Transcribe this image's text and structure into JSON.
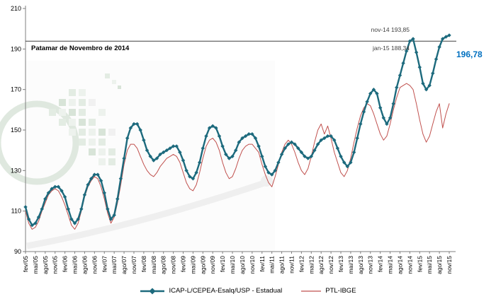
{
  "chart_data": {
    "type": "line",
    "title": "",
    "ylim": [
      90,
      210
    ],
    "y_ticks": [
      210,
      190,
      170,
      150,
      130,
      110,
      90
    ],
    "x_tick_step": 3,
    "x_tick_labels": [
      "fev/05",
      "mai/05",
      "ago/05",
      "nov/05",
      "fev/06",
      "mai/06",
      "ago/06",
      "nov/06",
      "fev/07",
      "mai/07",
      "ago/07",
      "nov/07",
      "fev/08",
      "mai/08",
      "ago/08",
      "nov/08",
      "fev/09",
      "mai/09",
      "ago/09",
      "nov/09",
      "fev/10",
      "mai/10",
      "ago/10",
      "nov/10",
      "fev/11",
      "mai/11",
      "ago/11",
      "nov/11",
      "fev/12",
      "mai/12",
      "ago/12",
      "nov/12",
      "fev/13",
      "mai/13",
      "ago/13",
      "nov/13",
      "fev/14",
      "mai/14",
      "ago/14",
      "nov/14",
      "fev/15",
      "mai/15",
      "ago/15",
      "nov/15"
    ],
    "reference_line": {
      "value": 193.85,
      "label": "Patamar de Novembro de 2014",
      "color": "#404040"
    },
    "annotations": [
      {
        "id": "nov14",
        "text": "nov-14 193,85",
        "color": "#404040"
      },
      {
        "id": "jan15",
        "text": "jan-15 188,34",
        "color": "#404040"
      },
      {
        "id": "last-value",
        "text": "196,78",
        "color": "#0070c0"
      }
    ],
    "legend_position": "bottom",
    "grid": false,
    "series": [
      {
        "name": "ICAP-L/CEPEA-Esalq/USP - Estadual",
        "color": "#1d6a7d",
        "line_width": 2.4,
        "marker": "diamond",
        "values": [
          112,
          106,
          103,
          104,
          107,
          111,
          116,
          119,
          121,
          122,
          122,
          120,
          117,
          111,
          106,
          104,
          106,
          111,
          118,
          123,
          126,
          128,
          128,
          125,
          119,
          111,
          106,
          108,
          116,
          126,
          136,
          146,
          151,
          153,
          153,
          150,
          145,
          140,
          137,
          135,
          136,
          138,
          139,
          140,
          141,
          142,
          142,
          139,
          135,
          130,
          127,
          126,
          129,
          134,
          141,
          147,
          151,
          152,
          151,
          147,
          142,
          138,
          136,
          137,
          140,
          144,
          146,
          147,
          148,
          148,
          146,
          142,
          137,
          132,
          129,
          128,
          130,
          134,
          138,
          141,
          143,
          144,
          143,
          141,
          139,
          137,
          136,
          137,
          140,
          143,
          145,
          146,
          147,
          147,
          145,
          141,
          137,
          134,
          132,
          134,
          139,
          146,
          153,
          159,
          164,
          168,
          170,
          168,
          161,
          156,
          153,
          156,
          163,
          171,
          177,
          183,
          189,
          193.85,
          195,
          188.34,
          181,
          173,
          170,
          172,
          178,
          185,
          191,
          195,
          196,
          196.78
        ]
      },
      {
        "name": "PTL-IBGE",
        "color": "#c0504d",
        "line_width": 1,
        "marker": "none",
        "values": [
          110,
          104,
          101,
          102,
          105,
          110,
          114,
          118,
          120,
          121,
          120,
          117,
          113,
          108,
          103,
          101,
          104,
          110,
          117,
          122,
          125,
          127,
          126,
          122,
          116,
          109,
          104,
          107,
          114,
          123,
          133,
          140,
          143,
          143,
          141,
          137,
          133,
          130,
          128,
          127,
          129,
          132,
          134,
          136,
          137,
          138,
          137,
          134,
          129,
          124,
          121,
          120,
          123,
          129,
          136,
          142,
          145,
          146,
          144,
          140,
          134,
          129,
          126,
          127,
          131,
          136,
          140,
          142,
          143,
          143,
          141,
          139,
          133,
          128,
          124,
          122,
          127,
          133,
          139,
          143,
          145,
          143,
          139,
          134,
          130,
          128,
          131,
          137,
          144,
          150,
          153,
          148,
          152,
          146,
          139,
          134,
          129,
          127,
          130,
          136,
          144,
          151,
          157,
          161,
          163,
          162,
          158,
          153,
          148,
          145,
          147,
          153,
          160,
          166,
          171,
          172,
          173,
          172,
          170,
          163,
          155,
          148,
          144,
          147,
          153,
          159,
          163,
          151,
          158,
          163
        ]
      }
    ]
  }
}
